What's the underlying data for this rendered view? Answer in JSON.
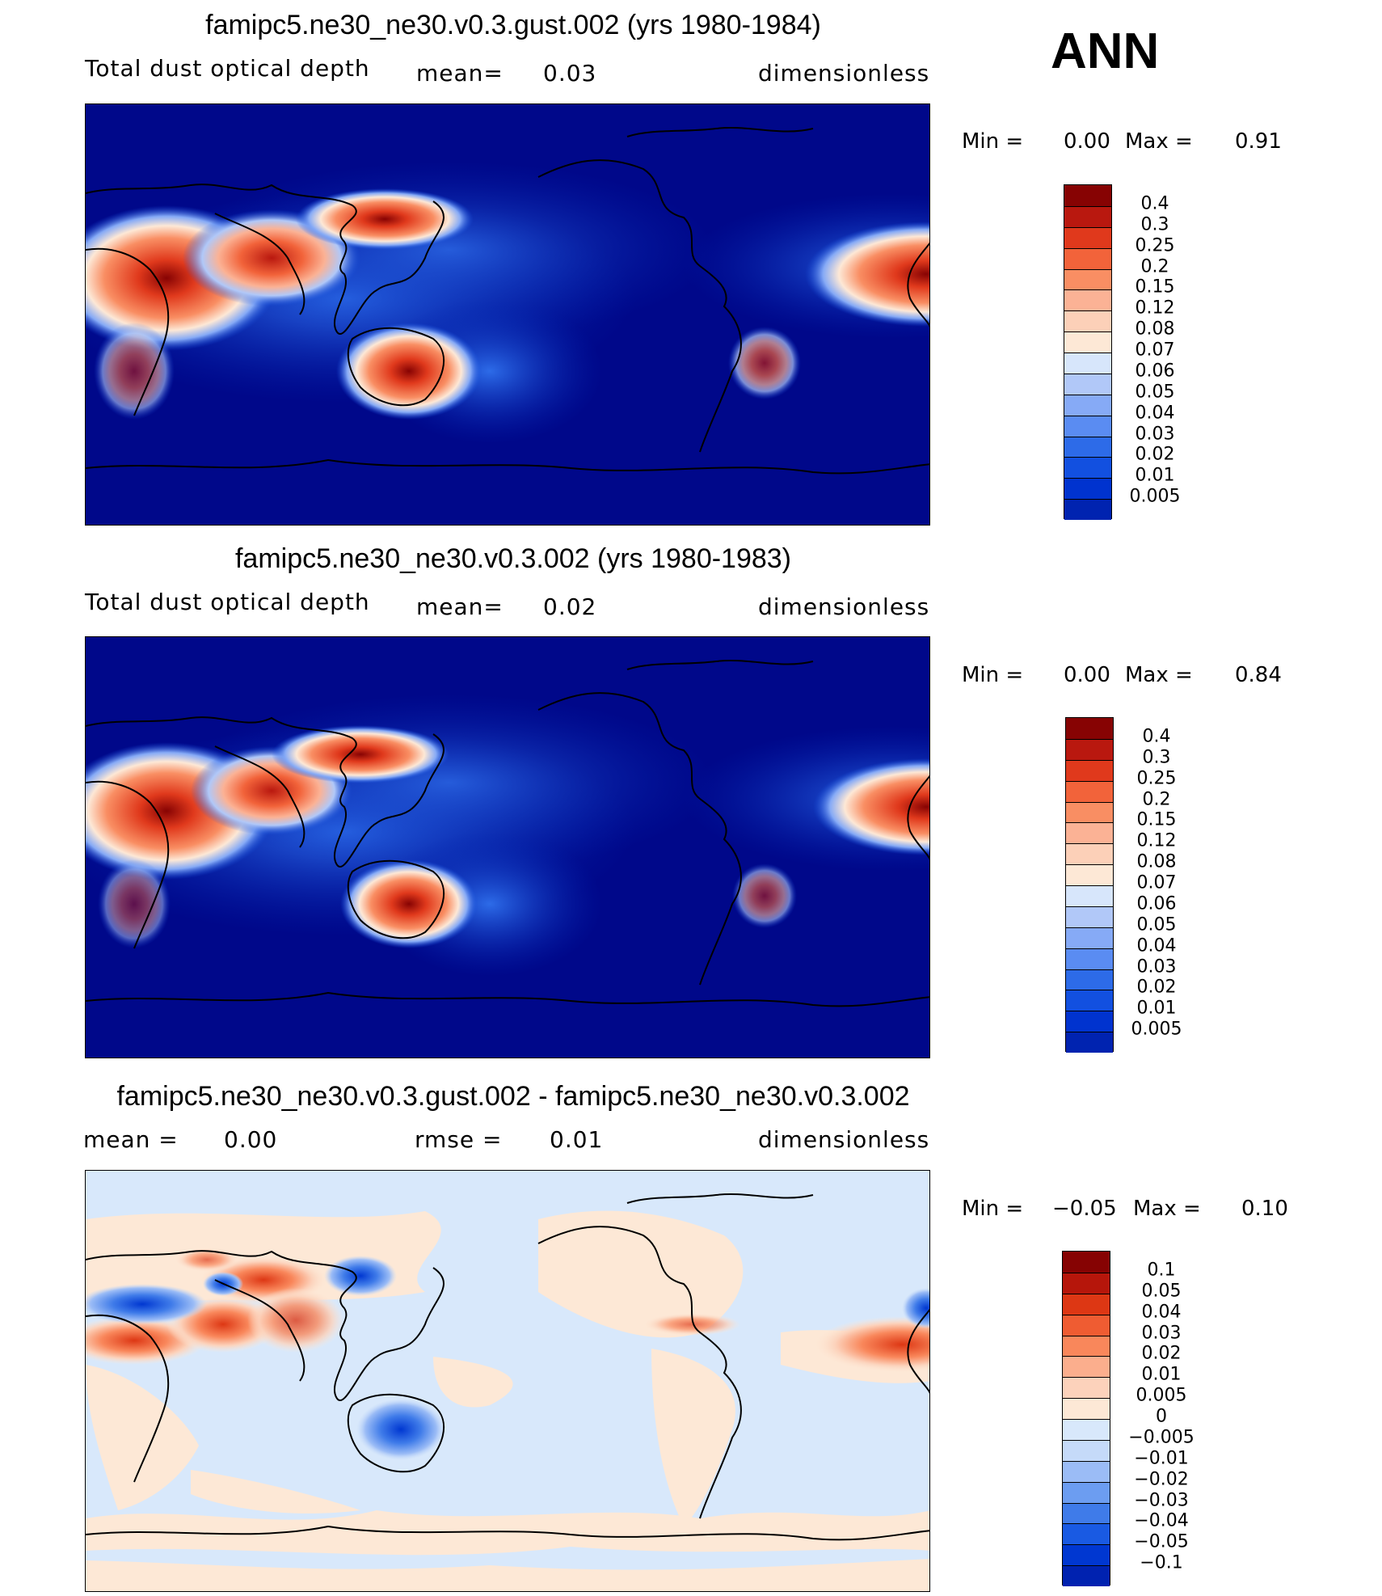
{
  "season": "ANN",
  "colors": {
    "sea": "#00088a",
    "dust_scale": [
      "#000780",
      "#0023b0",
      "#0033cf",
      "#1250e0",
      "#2d6be8",
      "#5a8cf2",
      "#86aaf6",
      "#b1c8f8",
      "#d7e6fb",
      "#fde8d6",
      "#fcd0b8",
      "#fbb295",
      "#f98e63",
      "#f2633a",
      "#e0391c",
      "#b9180f",
      "#870303"
    ],
    "diff_scale": [
      "#000780",
      "#0022b0",
      "#0037d1",
      "#195ae3",
      "#3f7be9",
      "#6c9df1",
      "#9bbcf6",
      "#c5daf9",
      "#d8e8fb",
      "#fde8d6",
      "#fcd2bb",
      "#fbae8d",
      "#f9875b",
      "#ef5c32",
      "#dd3714",
      "#b6160b",
      "#860303"
    ]
  },
  "panels": [
    {
      "title": "famipc5.ne30_ne30.v0.3.gust.002 (yrs 1980-1984)",
      "variable": "Total dust optical depth",
      "mean_label": "mean=",
      "mean_value": "0.03",
      "units": "dimensionless",
      "min_label": "Min =",
      "min_value": "0.00",
      "max_label": "Max =",
      "max_value": "0.91",
      "colorbar_labels": [
        "0.4",
        "0.3",
        "0.25",
        "0.2",
        "0.15",
        "0.12",
        "0.08",
        "0.07",
        "0.06",
        "0.05",
        "0.04",
        "0.03",
        "0.02",
        "0.01",
        "0.005"
      ]
    },
    {
      "title": "famipc5.ne30_ne30.v0.3.002 (yrs 1980-1983)",
      "variable": "Total dust optical depth",
      "mean_label": "mean=",
      "mean_value": "0.02",
      "units": "dimensionless",
      "min_label": "Min =",
      "min_value": "0.00",
      "max_label": "Max =",
      "max_value": "0.84",
      "colorbar_labels": [
        "0.4",
        "0.3",
        "0.25",
        "0.2",
        "0.15",
        "0.12",
        "0.08",
        "0.07",
        "0.06",
        "0.05",
        "0.04",
        "0.03",
        "0.02",
        "0.01",
        "0.005"
      ]
    },
    {
      "title": "famipc5.ne30_ne30.v0.3.gust.002 - famipc5.ne30_ne30.v0.3.002",
      "mean_label": "mean =",
      "mean_value": "0.00",
      "rmse_label": "rmse =",
      "rmse_value": "0.01",
      "units": "dimensionless",
      "min_label": "Min =",
      "min_value": "−0.05",
      "max_label": "Max =",
      "max_value": "0.10",
      "colorbar_labels": [
        "0.1",
        "0.05",
        "0.04",
        "0.03",
        "0.02",
        "0.01",
        "0.005",
        "0",
        "−0.005",
        "−0.01",
        "−0.02",
        "−0.03",
        "−0.04",
        "−0.05",
        "−0.1"
      ]
    }
  ]
}
